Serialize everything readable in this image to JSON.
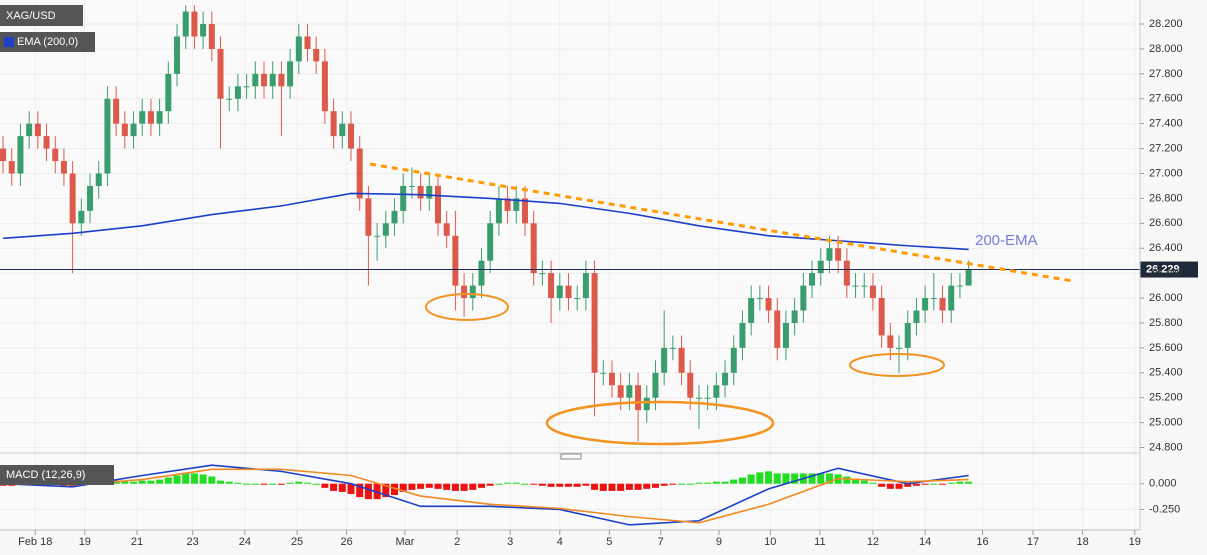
{
  "chart_data": [
    {
      "type": "candlestick",
      "title": "XAG/USD",
      "xlim": [
        -0.35,
        130.7
      ],
      "ylim": [
        24.78,
        28.393
      ],
      "yticks": [
        {
          "value": 24.8,
          "label": "24.800"
        },
        {
          "value": 25,
          "label": "25.000"
        },
        {
          "value": 25.2,
          "label": "25.200"
        },
        {
          "value": 25.4,
          "label": "25.400"
        },
        {
          "value": 25.6,
          "label": "25.600"
        },
        {
          "value": 25.8,
          "label": "25.800"
        },
        {
          "value": 26,
          "label": "26.000"
        },
        {
          "value": 26.2,
          "label": "26.200"
        },
        {
          "value": 26.4,
          "label": "26.400"
        },
        {
          "value": 26.6,
          "label": "26.600"
        },
        {
          "value": 26.8,
          "label": "26.800"
        },
        {
          "value": 27,
          "label": "27.000"
        },
        {
          "value": 27.2,
          "label": "27.200"
        },
        {
          "value": 27.4,
          "label": "27.400"
        },
        {
          "value": 27.6,
          "label": "27.600"
        },
        {
          "value": 27.8,
          "label": "27.800"
        },
        {
          "value": 28,
          "label": "28.000"
        },
        {
          "value": 28.2,
          "label": "28.200"
        }
      ],
      "up_color": "#3a9d6e",
      "down_color": "#dc5a4b",
      "open": [
        27.2,
        27.1,
        27.0,
        27.3,
        27.4,
        27.3,
        27.2,
        27.1,
        27.0,
        26.6,
        26.7,
        26.9,
        27.0,
        27.6,
        27.4,
        27.3,
        27.4,
        27.5,
        27.4,
        27.5,
        27.8,
        28.1,
        28.3,
        28.1,
        28.2,
        28.0,
        27.6,
        27.6,
        27.7,
        27.7,
        27.8,
        27.7,
        27.8,
        27.7,
        27.9,
        28.1,
        28.0,
        27.9,
        27.5,
        27.3,
        27.4,
        27.2,
        26.8,
        26.5,
        26.5,
        26.6,
        26.7,
        26.9,
        26.9,
        26.8,
        26.9,
        26.6,
        26.5,
        26.1,
        26.0,
        26.1,
        26.3,
        26.6,
        26.8,
        26.7,
        26.8,
        26.6,
        26.2,
        26.2,
        26.0,
        26.1,
        26.0,
        26.0,
        26.2,
        25.4,
        25.4,
        25.3,
        25.2,
        25.3,
        25.1,
        25.2,
        25.4,
        25.6,
        25.6,
        25.4,
        25.2,
        25.2,
        25.2,
        25.3,
        25.4,
        25.6,
        25.8,
        26.0,
        26.0,
        25.9,
        25.6,
        25.8,
        25.9,
        26.1,
        26.2,
        26.3,
        26.4,
        26.3,
        26.1,
        26.1,
        26.1,
        26.0,
        25.7,
        25.6,
        25.6,
        25.8,
        25.9,
        26.0,
        26.0,
        25.9,
        26.1,
        26.1
      ],
      "high": [
        27.3,
        27.2,
        27.4,
        27.5,
        27.5,
        27.4,
        27.3,
        27.2,
        27.1,
        26.8,
        27.0,
        27.1,
        27.7,
        27.7,
        27.5,
        27.5,
        27.6,
        27.6,
        27.6,
        27.9,
        28.2,
        28.35,
        28.35,
        28.3,
        28.3,
        28.1,
        27.7,
        27.8,
        27.8,
        27.9,
        27.9,
        27.9,
        27.9,
        28.0,
        28.2,
        28.2,
        28.1,
        28.0,
        27.6,
        27.5,
        27.5,
        27.3,
        26.9,
        26.6,
        26.7,
        26.8,
        27.0,
        27.05,
        27.0,
        27.0,
        27.0,
        26.7,
        26.7,
        26.2,
        26.2,
        26.4,
        26.7,
        26.9,
        26.9,
        26.9,
        26.9,
        26.7,
        26.3,
        26.3,
        26.2,
        26.2,
        26.1,
        26.3,
        26.3,
        25.5,
        25.5,
        25.4,
        25.4,
        25.4,
        25.3,
        25.5,
        25.9,
        25.7,
        25.7,
        25.5,
        25.3,
        25.3,
        25.4,
        25.5,
        25.7,
        25.9,
        26.1,
        26.1,
        26.1,
        26.0,
        25.9,
        26.0,
        26.2,
        26.3,
        26.4,
        26.5,
        26.5,
        26.4,
        26.2,
        26.2,
        26.2,
        26.1,
        25.8,
        25.7,
        25.9,
        26.0,
        26.1,
        26.2,
        26.1,
        26.2,
        26.2,
        26.3
      ],
      "low": [
        27.0,
        26.9,
        26.9,
        27.2,
        27.2,
        27.1,
        27.0,
        26.9,
        26.2,
        26.5,
        26.6,
        26.8,
        26.9,
        27.3,
        27.2,
        27.2,
        27.3,
        27.3,
        27.3,
        27.4,
        27.7,
        28.0,
        28.0,
        28.0,
        27.9,
        27.2,
        27.5,
        27.5,
        27.6,
        27.6,
        27.6,
        27.6,
        27.3,
        27.6,
        27.8,
        27.9,
        27.8,
        27.4,
        27.2,
        27.2,
        27.1,
        26.7,
        26.1,
        26.3,
        26.4,
        26.5,
        26.6,
        26.8,
        26.7,
        26.7,
        26.5,
        26.4,
        25.9,
        25.85,
        25.9,
        26.0,
        26.2,
        26.5,
        26.6,
        26.6,
        26.5,
        26.1,
        26.1,
        25.8,
        25.9,
        25.9,
        25.9,
        25.9,
        25.05,
        25.3,
        25.2,
        25.1,
        25.1,
        24.85,
        25.0,
        25.1,
        25.3,
        25.5,
        25.3,
        25.1,
        24.95,
        25.1,
        25.1,
        25.2,
        25.3,
        25.5,
        25.7,
        25.9,
        25.8,
        25.5,
        25.5,
        25.7,
        25.8,
        26.0,
        26.1,
        26.2,
        26.2,
        26.0,
        26.0,
        26.0,
        25.9,
        25.6,
        25.5,
        25.4,
        25.5,
        25.7,
        25.8,
        25.9,
        25.8,
        25.8,
        26.0,
        26.1
      ],
      "close": [
        27.1,
        27.0,
        27.3,
        27.4,
        27.3,
        27.2,
        27.1,
        27.0,
        26.6,
        26.7,
        26.9,
        27.0,
        27.6,
        27.4,
        27.3,
        27.4,
        27.5,
        27.4,
        27.5,
        27.8,
        28.1,
        28.3,
        28.1,
        28.2,
        28.0,
        27.6,
        27.6,
        27.7,
        27.7,
        27.8,
        27.7,
        27.8,
        27.7,
        27.9,
        28.1,
        28.0,
        27.9,
        27.5,
        27.3,
        27.4,
        27.2,
        26.8,
        26.5,
        26.5,
        26.6,
        26.7,
        26.9,
        26.9,
        26.8,
        26.9,
        26.6,
        26.5,
        26.1,
        26.0,
        26.1,
        26.3,
        26.6,
        26.8,
        26.7,
        26.8,
        26.6,
        26.2,
        26.2,
        26.0,
        26.1,
        26.0,
        26.0,
        26.2,
        25.4,
        25.4,
        25.3,
        25.2,
        25.3,
        25.1,
        25.2,
        25.4,
        25.6,
        25.6,
        25.4,
        25.2,
        25.2,
        25.2,
        25.3,
        25.4,
        25.6,
        25.8,
        26.0,
        26.0,
        25.9,
        25.6,
        25.8,
        25.9,
        26.1,
        26.2,
        26.3,
        26.4,
        26.3,
        26.1,
        26.1,
        26.1,
        26.0,
        25.7,
        25.6,
        25.6,
        25.8,
        25.9,
        26.0,
        26.0,
        25.9,
        26.1,
        26.1,
        26.23
      ],
      "series": [
        {
          "name": "EMA (200,0)",
          "color": "#1b3fc6",
          "x": [
            0,
            8,
            16,
            24,
            32,
            40,
            48,
            56,
            64,
            72,
            80,
            88,
            96,
            104,
            111
          ],
          "values": [
            26.48,
            26.52,
            26.58,
            26.67,
            26.74,
            26.84,
            26.83,
            26.8,
            26.76,
            26.68,
            26.58,
            26.5,
            26.46,
            26.42,
            26.39
          ]
        }
      ],
      "annotation": "200-EMA",
      "last_price": {
        "value": 26.229,
        "label": "26.229"
      }
    },
    {
      "type": "macd",
      "title": "MACD (12,26,9)",
      "xlim": [
        -0.35,
        130.7
      ],
      "ylim": [
        -0.45,
        0.25
      ],
      "yticks": [
        {
          "value": -0.25,
          "label": "-0.250"
        },
        {
          "value": 0,
          "label": "0.000"
        }
      ],
      "xticks": [
        {
          "value": 3.7,
          "label": "Feb 18"
        },
        {
          "value": 9.4,
          "label": "19"
        },
        {
          "value": 15.4,
          "label": "21"
        },
        {
          "value": 21.8,
          "label": "23"
        },
        {
          "value": 27.8,
          "label": "24"
        },
        {
          "value": 33.8,
          "label": "25"
        },
        {
          "value": 39.5,
          "label": "26"
        },
        {
          "value": 46.2,
          "label": "Mar"
        },
        {
          "value": 52.2,
          "label": "2"
        },
        {
          "value": 58.3,
          "label": "3"
        },
        {
          "value": 64,
          "label": "4"
        },
        {
          "value": 69.7,
          "label": "5"
        },
        {
          "value": 75.6,
          "label": "7"
        },
        {
          "value": 82.3,
          "label": "9"
        },
        {
          "value": 88.2,
          "label": "10"
        },
        {
          "value": 93.9,
          "label": "11"
        },
        {
          "value": 100,
          "label": "12"
        },
        {
          "value": 106,
          "label": "14"
        },
        {
          "value": 112.6,
          "label": "16"
        },
        {
          "value": 118.4,
          "label": "17"
        },
        {
          "value": 124.1,
          "label": "18"
        },
        {
          "value": 130.1,
          "label": "19"
        }
      ],
      "histogram": {
        "up_color": "#22dd22",
        "down_color": "#ee1111",
        "values": [
          -0.02,
          -0.02,
          -0.01,
          0.01,
          0.01,
          0.0,
          -0.01,
          -0.02,
          -0.03,
          -0.02,
          0.0,
          0.01,
          0.03,
          0.03,
          0.02,
          0.02,
          0.03,
          0.03,
          0.04,
          0.06,
          0.08,
          0.1,
          0.1,
          0.09,
          0.07,
          0.03,
          0.02,
          0.01,
          0.0,
          0.0,
          -0.01,
          0.0,
          -0.01,
          0.01,
          0.02,
          0.01,
          0.0,
          -0.04,
          -0.07,
          -0.08,
          -0.1,
          -0.13,
          -0.15,
          -0.15,
          -0.13,
          -0.11,
          -0.08,
          -0.06,
          -0.05,
          -0.04,
          -0.05,
          -0.06,
          -0.07,
          -0.07,
          -0.06,
          -0.04,
          -0.02,
          0.0,
          0.01,
          0.01,
          0.0,
          -0.01,
          -0.02,
          -0.03,
          -0.03,
          -0.03,
          -0.03,
          -0.02,
          -0.06,
          -0.07,
          -0.07,
          -0.07,
          -0.06,
          -0.06,
          -0.05,
          -0.04,
          -0.02,
          -0.01,
          0.0,
          0.0,
          0.01,
          0.01,
          0.02,
          0.02,
          0.04,
          0.06,
          0.09,
          0.11,
          0.12,
          0.1,
          0.1,
          0.1,
          0.1,
          0.1,
          0.1,
          0.1,
          0.09,
          0.07,
          0.05,
          0.03,
          0.01,
          -0.03,
          -0.05,
          -0.05,
          -0.03,
          -0.02,
          -0.01,
          0.0,
          -0.01,
          0.01,
          0.02,
          0.02
        ]
      },
      "series": [
        {
          "color": "#1b3fc6",
          "x": [
            0,
            8,
            16,
            24,
            32,
            40,
            48,
            56,
            64,
            72,
            80,
            88,
            96,
            104,
            111
          ],
          "values": [
            0.0,
            -0.03,
            0.08,
            0.18,
            0.12,
            0.0,
            -0.22,
            -0.22,
            -0.25,
            -0.4,
            -0.36,
            -0.05,
            0.15,
            0.0,
            0.08
          ]
        },
        {
          "color": "#f08a24",
          "x": [
            0,
            8,
            16,
            24,
            32,
            40,
            48,
            56,
            64,
            72,
            80,
            88,
            96,
            104,
            111
          ],
          "values": [
            0.02,
            -0.01,
            0.04,
            0.14,
            0.14,
            0.08,
            -0.12,
            -0.2,
            -0.24,
            -0.32,
            -0.38,
            -0.2,
            0.05,
            0.02,
            0.04
          ]
        }
      ]
    }
  ]
}
